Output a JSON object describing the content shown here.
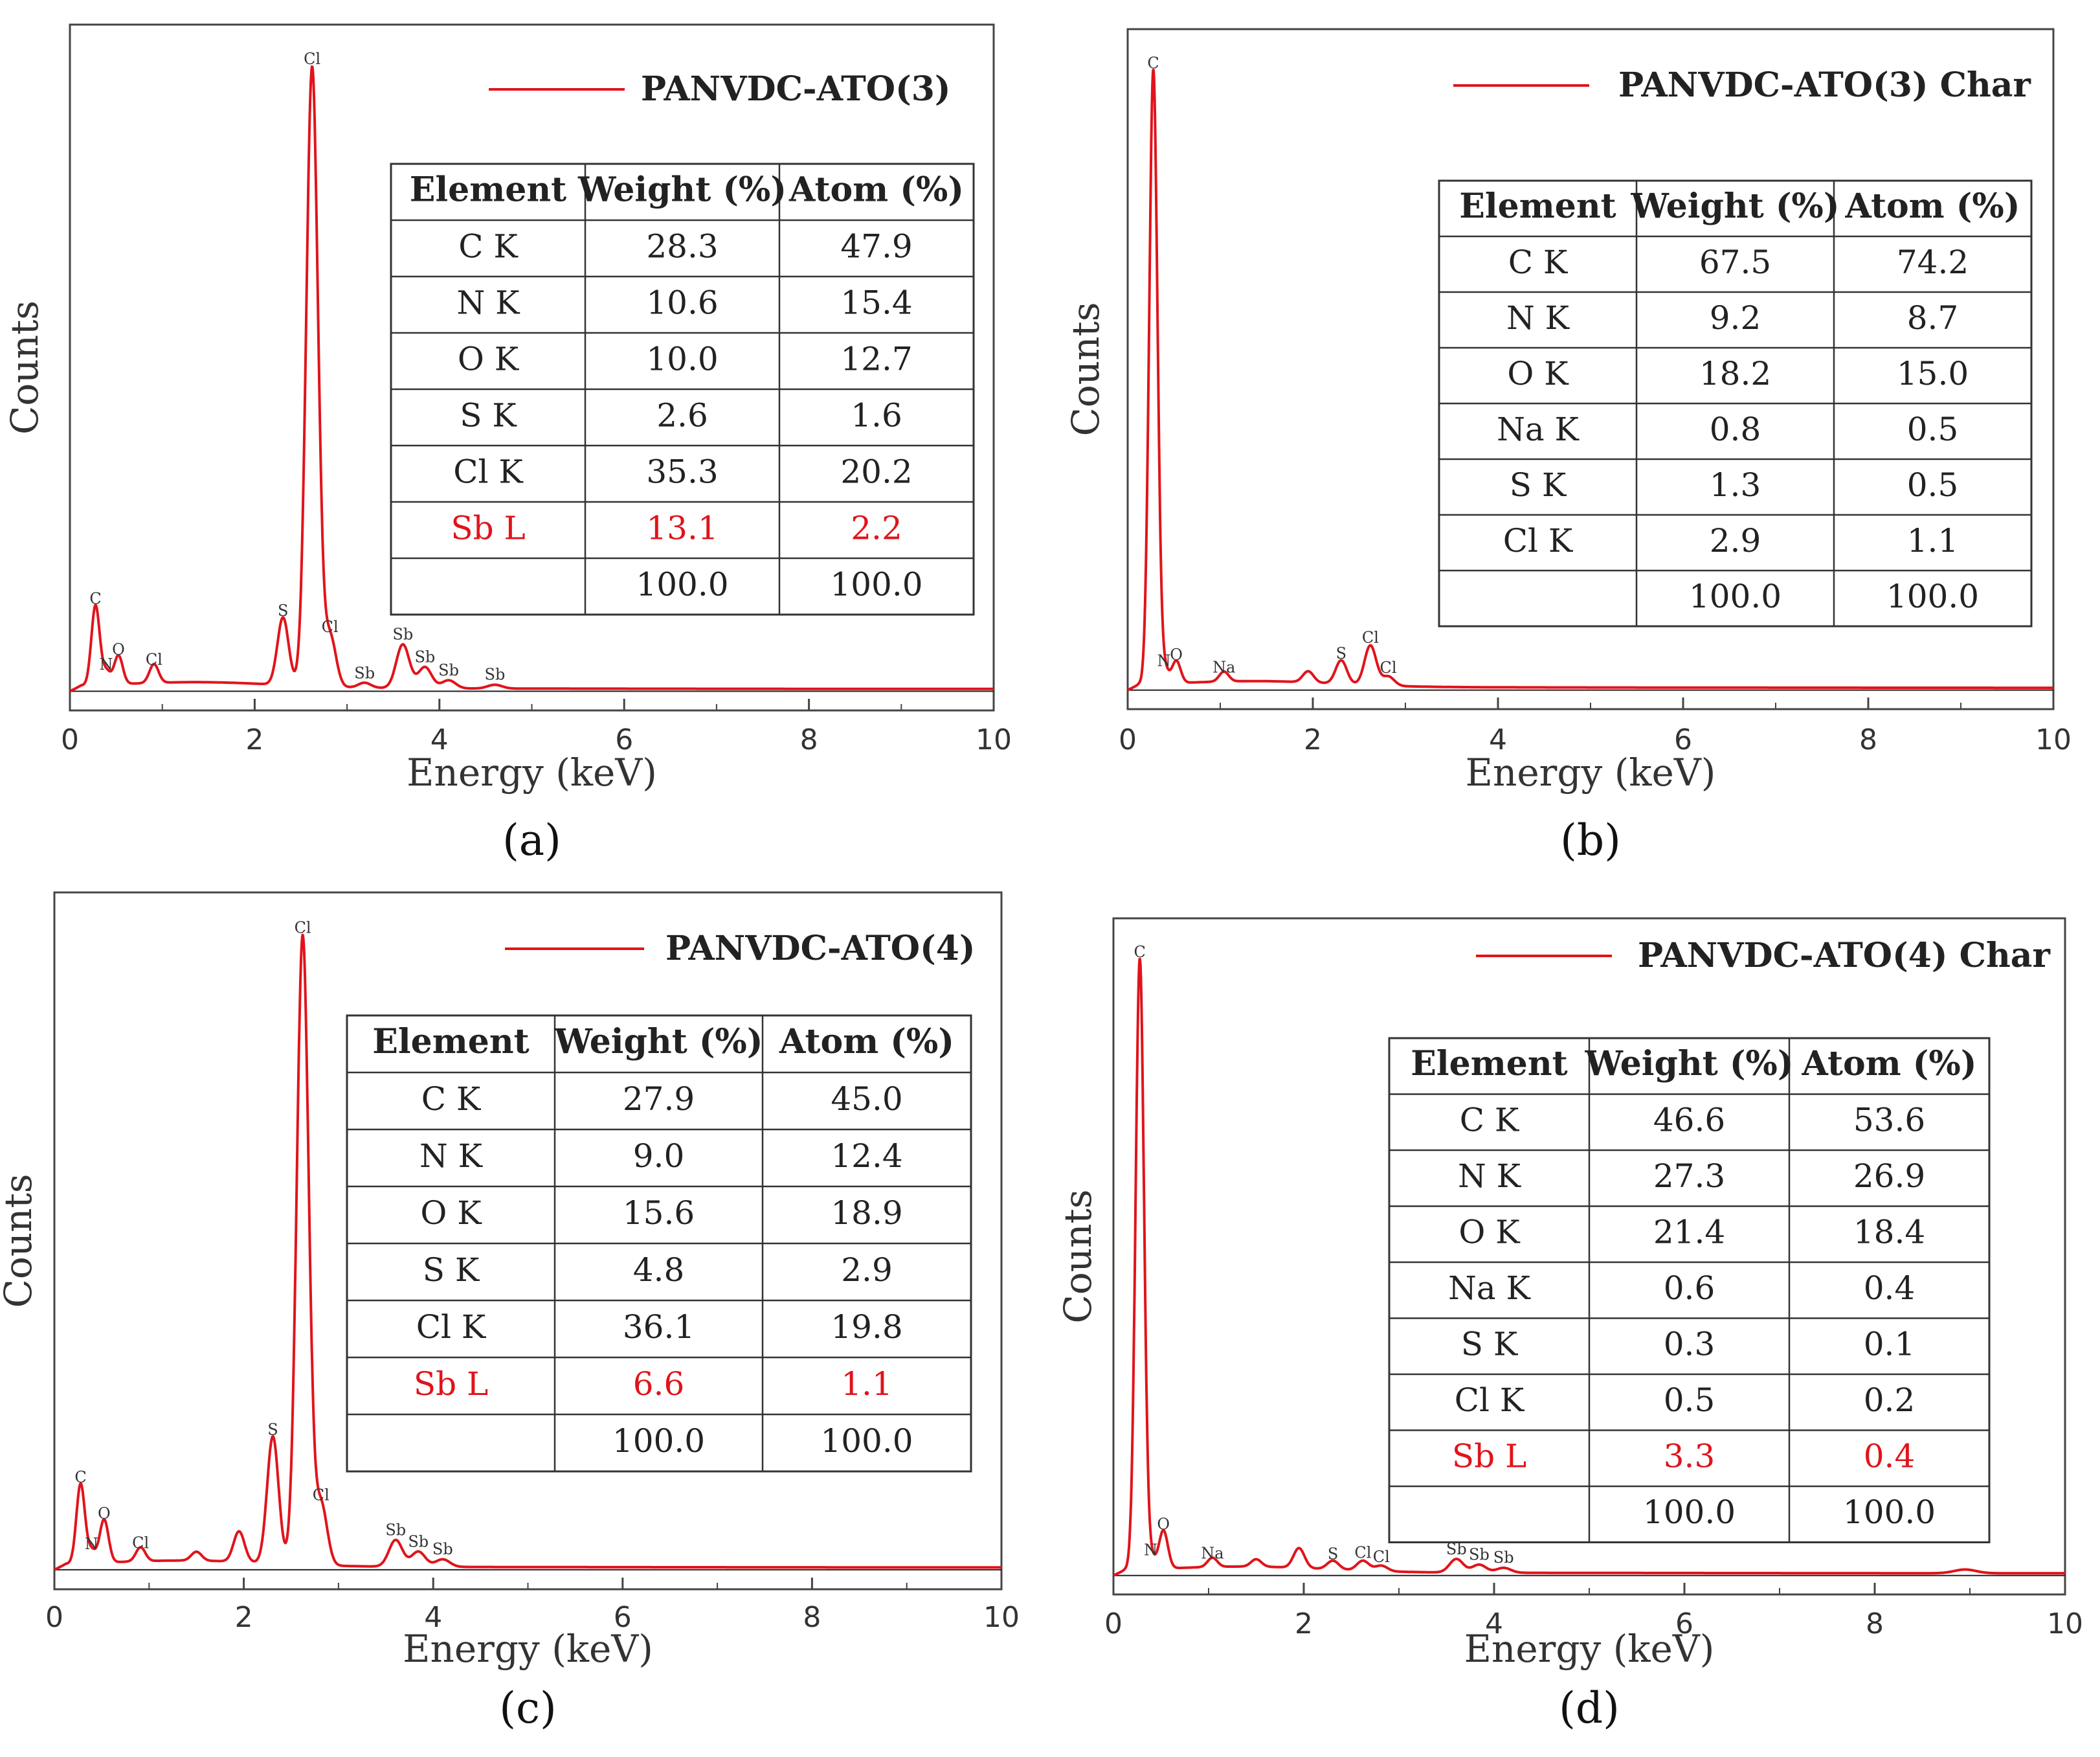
{
  "chart_data": [
    {
      "panel": "(a)",
      "type": "line",
      "legend": "PANVDC-ATO(3)",
      "xlabel": "Energy (keV)",
      "ylabel": "Counts",
      "xlim": [
        0,
        10
      ],
      "ylim": [
        0,
        100
      ],
      "xticks": [
        "0",
        "2",
        "4",
        "6",
        "8",
        "10"
      ],
      "line_color": "#e0141b",
      "peaks": [
        {
          "x": 0.277,
          "y": 12.7
        },
        {
          "x": 0.392,
          "y": 2.2
        },
        {
          "x": 0.525,
          "y": 4.6
        },
        {
          "x": 0.91,
          "y": 3.0
        },
        {
          "x": 2.307,
          "y": 10.8
        },
        {
          "x": 2.622,
          "y": 99.0
        },
        {
          "x": 2.815,
          "y": 8.2
        },
        {
          "x": 3.19,
          "y": 0.8
        },
        {
          "x": 3.604,
          "y": 7.0
        },
        {
          "x": 3.843,
          "y": 3.4
        },
        {
          "x": 4.1,
          "y": 1.3
        },
        {
          "x": 4.6,
          "y": 0.6
        }
      ],
      "peak_labels": [
        {
          "text": "C",
          "x": 0.277,
          "y": 12.7
        },
        {
          "text": "N",
          "x": 0.392,
          "y": 2.2
        },
        {
          "text": "O",
          "x": 0.525,
          "y": 4.6
        },
        {
          "text": "Cl",
          "x": 0.91,
          "y": 3.0
        },
        {
          "text": "S",
          "x": 2.307,
          "y": 10.8
        },
        {
          "text": "Cl",
          "x": 2.622,
          "y": 99.0
        },
        {
          "text": "Cl",
          "x": 2.815,
          "y": 8.2
        },
        {
          "text": "Sb",
          "x": 3.19,
          "y": 0.8
        },
        {
          "text": "Sb",
          "x": 3.604,
          "y": 7.0
        },
        {
          "text": "Sb",
          "x": 3.843,
          "y": 3.4
        },
        {
          "text": "Sb",
          "x": 4.1,
          "y": 1.3
        },
        {
          "text": "Sb",
          "x": 4.6,
          "y": 0.6
        }
      ],
      "table": {
        "headers": [
          "Element",
          "Weight (%)",
          "Atom (%)"
        ],
        "rows": [
          {
            "cells": [
              "C K",
              "28.3",
              "47.9"
            ],
            "highlight": false
          },
          {
            "cells": [
              "N K",
              "10.6",
              "15.4"
            ],
            "highlight": false
          },
          {
            "cells": [
              "O K",
              "10.0",
              "12.7"
            ],
            "highlight": false
          },
          {
            "cells": [
              "S K",
              "2.6",
              "1.6"
            ],
            "highlight": false
          },
          {
            "cells": [
              "Cl K",
              "35.3",
              "20.2"
            ],
            "highlight": false
          },
          {
            "cells": [
              "Sb L",
              "13.1",
              "2.2"
            ],
            "highlight": true
          },
          {
            "cells": [
              "",
              "100.0",
              "100.0"
            ],
            "highlight": false
          }
        ]
      }
    },
    {
      "panel": "(b)",
      "type": "line",
      "legend": "PANVDC-ATO(3) Char",
      "xlabel": "Energy (keV)",
      "ylabel": "Counts",
      "xlim": [
        0,
        10
      ],
      "ylim": [
        0,
        100
      ],
      "xticks": [
        "0",
        "2",
        "4",
        "6",
        "8",
        "10"
      ],
      "line_color": "#e0141b",
      "peaks": [
        {
          "x": 0.277,
          "y": 99.0
        },
        {
          "x": 0.392,
          "y": 2.6
        },
        {
          "x": 0.525,
          "y": 3.6
        },
        {
          "x": 1.04,
          "y": 1.6
        },
        {
          "x": 1.95,
          "y": 1.8
        },
        {
          "x": 2.307,
          "y": 3.8
        },
        {
          "x": 2.622,
          "y": 6.4
        },
        {
          "x": 2.815,
          "y": 1.5
        }
      ],
      "peak_labels": [
        {
          "text": "C",
          "x": 0.277,
          "y": 99.0
        },
        {
          "text": "N",
          "x": 0.392,
          "y": 2.6
        },
        {
          "text": "O",
          "x": 0.525,
          "y": 3.6
        },
        {
          "text": "Na",
          "x": 1.04,
          "y": 1.6
        },
        {
          "text": "S",
          "x": 2.307,
          "y": 3.8
        },
        {
          "text": "Cl",
          "x": 2.622,
          "y": 6.4
        },
        {
          "text": "Cl",
          "x": 2.815,
          "y": 1.5
        }
      ],
      "table": {
        "headers": [
          "Element",
          "Weight (%)",
          "Atom (%)"
        ],
        "rows": [
          {
            "cells": [
              "C K",
              "67.5",
              "74.2"
            ],
            "highlight": false
          },
          {
            "cells": [
              "N K",
              "9.2",
              "8.7"
            ],
            "highlight": false
          },
          {
            "cells": [
              "O K",
              "18.2",
              "15.0"
            ],
            "highlight": false
          },
          {
            "cells": [
              "Na K",
              "0.8",
              "0.5"
            ],
            "highlight": false
          },
          {
            "cells": [
              "S K",
              "1.3",
              "0.5"
            ],
            "highlight": false
          },
          {
            "cells": [
              "Cl K",
              "2.9",
              "1.1"
            ],
            "highlight": false
          },
          {
            "cells": [
              "",
              "100.0",
              "100.0"
            ],
            "highlight": false
          }
        ]
      }
    },
    {
      "panel": "(c)",
      "type": "line",
      "legend": "PANVDC-ATO(4)",
      "xlabel": "Energy (keV)",
      "ylabel": "Counts",
      "xlim": [
        0,
        10
      ],
      "ylim": [
        0,
        100
      ],
      "xticks": [
        "0",
        "2",
        "4",
        "6",
        "8",
        "10"
      ],
      "line_color": "#e0141b",
      "peaks": [
        {
          "x": 0.277,
          "y": 12.5
        },
        {
          "x": 0.392,
          "y": 2.0
        },
        {
          "x": 0.525,
          "y": 6.8
        },
        {
          "x": 0.91,
          "y": 2.2
        },
        {
          "x": 1.5,
          "y": 1.4
        },
        {
          "x": 1.95,
          "y": 4.8
        },
        {
          "x": 2.307,
          "y": 20.0
        },
        {
          "x": 2.622,
          "y": 99.0
        },
        {
          "x": 2.815,
          "y": 9.7
        },
        {
          "x": 3.604,
          "y": 4.2
        },
        {
          "x": 3.843,
          "y": 2.4
        },
        {
          "x": 4.1,
          "y": 1.2
        }
      ],
      "peak_labels": [
        {
          "text": "C",
          "x": 0.277,
          "y": 12.5
        },
        {
          "text": "N",
          "x": 0.392,
          "y": 2.0
        },
        {
          "text": "O",
          "x": 0.525,
          "y": 6.8
        },
        {
          "text": "Cl",
          "x": 0.91,
          "y": 2.2
        },
        {
          "text": "S",
          "x": 2.307,
          "y": 20.0
        },
        {
          "text": "Cl",
          "x": 2.622,
          "y": 99.0
        },
        {
          "text": "Cl",
          "x": 2.815,
          "y": 9.7
        },
        {
          "text": "Sb",
          "x": 3.604,
          "y": 4.2
        },
        {
          "text": "Sb",
          "x": 3.843,
          "y": 2.4
        },
        {
          "text": "Sb",
          "x": 4.1,
          "y": 1.2
        }
      ],
      "table": {
        "headers": [
          "Element",
          "Weight (%)",
          "Atom (%)"
        ],
        "rows": [
          {
            "cells": [
              "C K",
              "27.9",
              "45.0"
            ],
            "highlight": false
          },
          {
            "cells": [
              "N K",
              "9.0",
              "12.4"
            ],
            "highlight": false
          },
          {
            "cells": [
              "O K",
              "15.6",
              "18.9"
            ],
            "highlight": false
          },
          {
            "cells": [
              "S K",
              "4.8",
              "2.9"
            ],
            "highlight": false
          },
          {
            "cells": [
              "Cl K",
              "36.1",
              "19.8"
            ],
            "highlight": false
          },
          {
            "cells": [
              "Sb L",
              "6.6",
              "1.1"
            ],
            "highlight": true
          },
          {
            "cells": [
              "",
              "100.0",
              "100.0"
            ],
            "highlight": false
          }
        ]
      }
    },
    {
      "panel": "(d)",
      "type": "line",
      "legend": "PANVDC-ATO(4) Char",
      "xlabel": "Energy (keV)",
      "ylabel": "Counts",
      "xlim": [
        0,
        10
      ],
      "ylim": [
        0,
        100
      ],
      "xticks": [
        "0",
        "2",
        "4",
        "6",
        "8",
        "10"
      ],
      "line_color": "#e0141b",
      "peaks": [
        {
          "x": 0.277,
          "y": 99.0
        },
        {
          "x": 0.392,
          "y": 2.0
        },
        {
          "x": 0.525,
          "y": 6.2
        },
        {
          "x": 1.04,
          "y": 1.5
        },
        {
          "x": 1.5,
          "y": 1.2
        },
        {
          "x": 1.95,
          "y": 3.2
        },
        {
          "x": 2.307,
          "y": 1.4
        },
        {
          "x": 2.622,
          "y": 1.6
        },
        {
          "x": 2.815,
          "y": 0.9
        },
        {
          "x": 3.604,
          "y": 2.2
        },
        {
          "x": 3.843,
          "y": 1.3
        },
        {
          "x": 4.1,
          "y": 0.8
        },
        {
          "x": 8.95,
          "y": 0.6
        }
      ],
      "peak_labels": [
        {
          "text": "C",
          "x": 0.277,
          "y": 99.0
        },
        {
          "text": "N",
          "x": 0.392,
          "y": 2.0
        },
        {
          "text": "O",
          "x": 0.525,
          "y": 6.2
        },
        {
          "text": "Na",
          "x": 1.04,
          "y": 1.5
        },
        {
          "text": "S",
          "x": 2.307,
          "y": 1.4
        },
        {
          "text": "Cl",
          "x": 2.622,
          "y": 1.6
        },
        {
          "text": "Cl",
          "x": 2.815,
          "y": 0.9
        },
        {
          "text": "Sb",
          "x": 3.604,
          "y": 2.2
        },
        {
          "text": "Sb",
          "x": 3.843,
          "y": 1.3
        },
        {
          "text": "Sb",
          "x": 4.1,
          "y": 0.8
        }
      ],
      "table": {
        "headers": [
          "Element",
          "Weight (%)",
          "Atom (%)"
        ],
        "rows": [
          {
            "cells": [
              "C K",
              "46.6",
              "53.6"
            ],
            "highlight": false
          },
          {
            "cells": [
              "N K",
              "27.3",
              "26.9"
            ],
            "highlight": false
          },
          {
            "cells": [
              "O K",
              "21.4",
              "18.4"
            ],
            "highlight": false
          },
          {
            "cells": [
              "Na K",
              "0.6",
              "0.4"
            ],
            "highlight": false
          },
          {
            "cells": [
              "S K",
              "0.3",
              "0.1"
            ],
            "highlight": false
          },
          {
            "cells": [
              "Cl K",
              "0.5",
              "0.2"
            ],
            "highlight": false
          },
          {
            "cells": [
              "Sb L",
              "3.3",
              "0.4"
            ],
            "highlight": true
          },
          {
            "cells": [
              "",
              "100.0",
              "100.0"
            ],
            "highlight": false
          }
        ]
      }
    }
  ]
}
